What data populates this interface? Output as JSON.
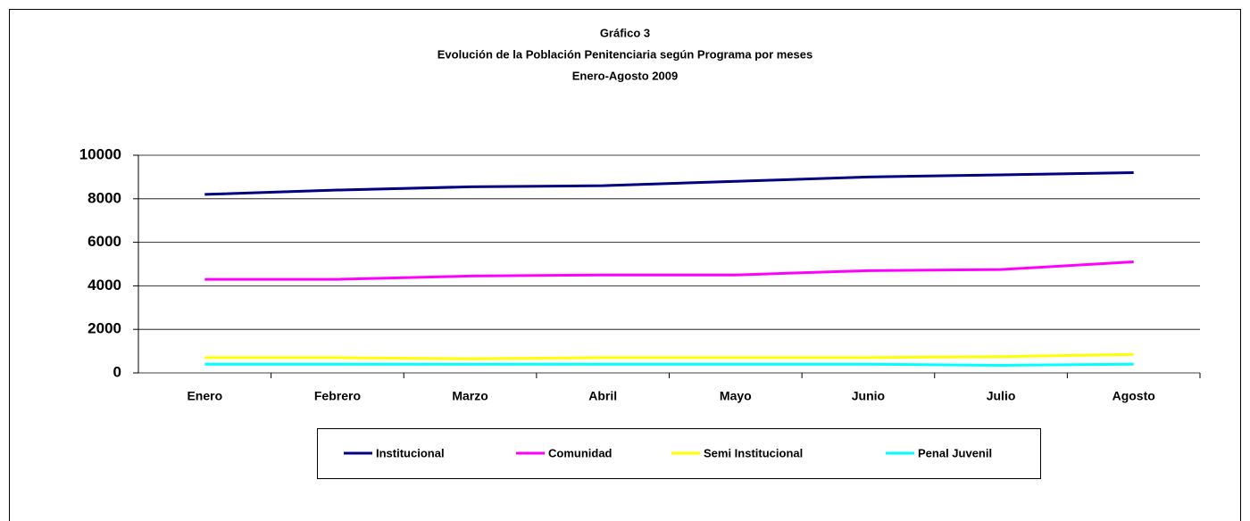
{
  "chart_data": {
    "type": "line",
    "title": "Gráfico 3",
    "subtitle": [
      "Evolución de la Población Penitenciaria según Programa por meses",
      "Enero-Agosto  2009"
    ],
    "categories": [
      "Enero",
      "Febrero",
      "Marzo",
      "Abril",
      "Mayo",
      "Junio",
      "Julio",
      "Agosto"
    ],
    "series": [
      {
        "name": "Institucional",
        "color": "#000080",
        "values": [
          8200,
          8400,
          8550,
          8600,
          8800,
          9000,
          9100,
          9200
        ]
      },
      {
        "name": "Comunidad",
        "color": "#ff00ff",
        "values": [
          4300,
          4300,
          4450,
          4500,
          4500,
          4700,
          4750,
          5100
        ]
      },
      {
        "name": "Semi Institucional",
        "color": "#ffff00",
        "values": [
          700,
          700,
          650,
          700,
          700,
          700,
          750,
          850
        ]
      },
      {
        "name": "Penal Juvenil",
        "color": "#00ffff",
        "values": [
          400,
          400,
          400,
          400,
          400,
          400,
          350,
          400
        ]
      }
    ],
    "ylim": [
      0,
      10000
    ],
    "yticks": [
      0,
      2000,
      4000,
      6000,
      8000,
      10000
    ],
    "grid": true,
    "legend": "bottom"
  }
}
